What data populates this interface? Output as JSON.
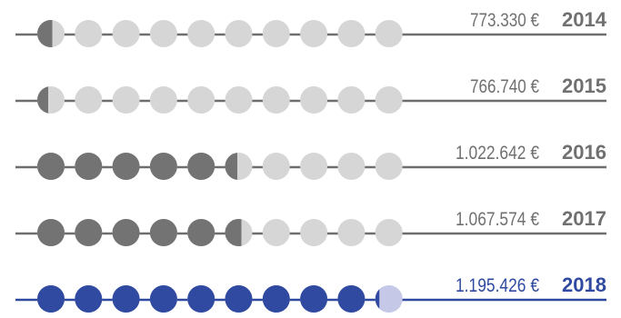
{
  "chart_data": {
    "type": "pictogram",
    "dots_per_row": 10,
    "rows": [
      {
        "year": "2014",
        "amount_label": "773.330 €",
        "value": 773330,
        "filled_dots": 0.55
      },
      {
        "year": "2015",
        "amount_label": "766.740 €",
        "value": 766740,
        "filled_dots": 0.4
      },
      {
        "year": "2016",
        "amount_label": "1.022.642 €",
        "value": 1022642,
        "filled_dots": 5.45
      },
      {
        "year": "2017",
        "amount_label": "1.067.574 €",
        "value": 1067574,
        "filled_dots": 5.6
      },
      {
        "year": "2018",
        "amount_label": "1.195.426 €",
        "value": 1195426,
        "filled_dots": 9.15
      }
    ]
  },
  "colors": {
    "default_filled": "#737373",
    "default_empty": "#d6d6d6",
    "default_line": "#6e6e6e",
    "default_text": "#707070",
    "highlight_filled": "#2f4aa0",
    "highlight_empty": "#c5c8e6",
    "highlight_line": "#2f4aa0",
    "highlight_text": "#2f4aa0"
  },
  "highlight_year": "2018"
}
